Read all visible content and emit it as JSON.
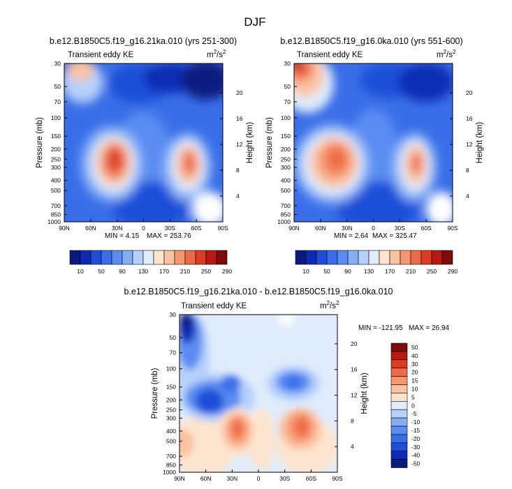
{
  "figure_title": "DJF",
  "chart_data": [
    {
      "type": "heatmap",
      "title": "b.e12.B1850C5.f19_g16.21ka.010 (yrs 251-300)",
      "left_string": "Transient eddy KE",
      "units": "m²/s²",
      "units_base": "m",
      "units_exp": "2",
      "units_mid": "/s",
      "units_exp2": "2",
      "xlabel": "",
      "ylabel": "Pressure (mb)",
      "ylabel_right": "Height (km)",
      "x_ticks": [
        "90N",
        "60N",
        "30N",
        "0",
        "30S",
        "60S",
        "90S"
      ],
      "x_range": [
        90,
        -90
      ],
      "y_ticks": [
        "30",
        "50",
        "70",
        "100",
        "150",
        "200",
        "250",
        "300",
        "400",
        "500",
        "700",
        "850",
        "1000"
      ],
      "y_ticks_right": [
        "20",
        "16",
        "12",
        "8",
        "4"
      ],
      "min_label": "MIN =  4.15",
      "max_label": "MAX = 253.76",
      "min": 4.15,
      "max": 253.76,
      "features": [
        {
          "lat": 30,
          "p": 270,
          "value": 250
        },
        {
          "lat": -45,
          "p": 270,
          "value": 235
        },
        {
          "lat": 75,
          "p": 30,
          "value": 165
        },
        {
          "lat": 0,
          "p": 800,
          "value": 60
        }
      ],
      "colorbar_labels": [
        "10",
        "50",
        "90",
        "130",
        "170",
        "210",
        "250",
        "290"
      ]
    },
    {
      "type": "heatmap",
      "title": "b.e12.B1850C5.f19_g16.0ka.010 (yrs 551-600)",
      "left_string": "Transient eddy KE",
      "units": "m²/s²",
      "units_base": "m",
      "units_exp": "2",
      "units_mid": "/s",
      "units_exp2": "2",
      "xlabel": "",
      "ylabel": "Pressure (mb)",
      "ylabel_right": "Height (km)",
      "x_ticks": [
        "90N",
        "60N",
        "30N",
        "0",
        "30S",
        "60S",
        "90S"
      ],
      "x_range": [
        90,
        -90
      ],
      "y_ticks": [
        "30",
        "50",
        "70",
        "100",
        "150",
        "200",
        "250",
        "300",
        "400",
        "500",
        "700",
        "850",
        "1000"
      ],
      "y_ticks_right": [
        "20",
        "16",
        "12",
        "8",
        "4"
      ],
      "min_label": "MIN =  2.64",
      "max_label": "MAX = 325.47",
      "min": 2.64,
      "max": 325.47,
      "features": [
        {
          "lat": 40,
          "p": 260,
          "value": 240
        },
        {
          "lat": -45,
          "p": 270,
          "value": 225
        },
        {
          "lat": 88,
          "p": 30,
          "value": 320
        },
        {
          "lat": 0,
          "p": 800,
          "value": 60
        }
      ],
      "colorbar_labels": [
        "10",
        "50",
        "90",
        "130",
        "170",
        "210",
        "250",
        "290"
      ]
    },
    {
      "type": "heatmap",
      "title": "b.e12.B1850C5.f19_g16.21ka.010 - b.e12.B1850C5.f19_g16.0ka.010",
      "left_string": "Transient eddy KE",
      "units": "m²/s²",
      "units_base": "m",
      "units_exp": "2",
      "units_mid": "/s",
      "units_exp2": "2",
      "xlabel": "",
      "ylabel": "Pressure (mb)",
      "ylabel_right": "Height (km)",
      "x_ticks": [
        "90N",
        "60N",
        "30N",
        "0",
        "30S",
        "60S",
        "90S"
      ],
      "x_range": [
        90,
        -90
      ],
      "y_ticks": [
        "30",
        "50",
        "70",
        "100",
        "150",
        "200",
        "250",
        "300",
        "400",
        "500",
        "700",
        "850",
        "1000"
      ],
      "y_ticks_right": [
        "20",
        "16",
        "12",
        "8",
        "4"
      ],
      "min_label": "MIN = -121.95",
      "max_label": "MAX =  26.94",
      "min": -121.95,
      "max": 26.94,
      "features": [
        {
          "lat": 35,
          "p": 400,
          "value": 28
        },
        {
          "lat": -50,
          "p": 400,
          "value": 27
        },
        {
          "lat": 85,
          "p": 30,
          "value": -55
        },
        {
          "lat": 50,
          "p": 210,
          "value": -28
        },
        {
          "lat": -45,
          "p": 150,
          "value": -24
        }
      ],
      "colorbar_labels": [
        "50",
        "40",
        "30",
        "20",
        "15",
        "10",
        "5",
        "0",
        "-5",
        "-10",
        "-15",
        "-20",
        "-30",
        "-40",
        "-50"
      ]
    }
  ],
  "palettes": {
    "abs": [
      "#0a1b80",
      "#0a2db4",
      "#1f4fd8",
      "#3a6ee8",
      "#5a8cf2",
      "#84aff6",
      "#b5d0fa",
      "#e0ecfb",
      "#fde4cf",
      "#fbc2a0",
      "#f7976f",
      "#ee6a47",
      "#dc3d22",
      "#b61b12",
      "#7e0b08"
    ],
    "diff": [
      "#7e0b08",
      "#b61b12",
      "#dc3d22",
      "#ee6a47",
      "#f7976f",
      "#fbc2a0",
      "#fde4cf",
      "#e0ecfb",
      "#b5d0fa",
      "#84aff6",
      "#5a8cf2",
      "#3a6ee8",
      "#1f4fd8",
      "#0a2db4",
      "#0a1b80"
    ]
  }
}
